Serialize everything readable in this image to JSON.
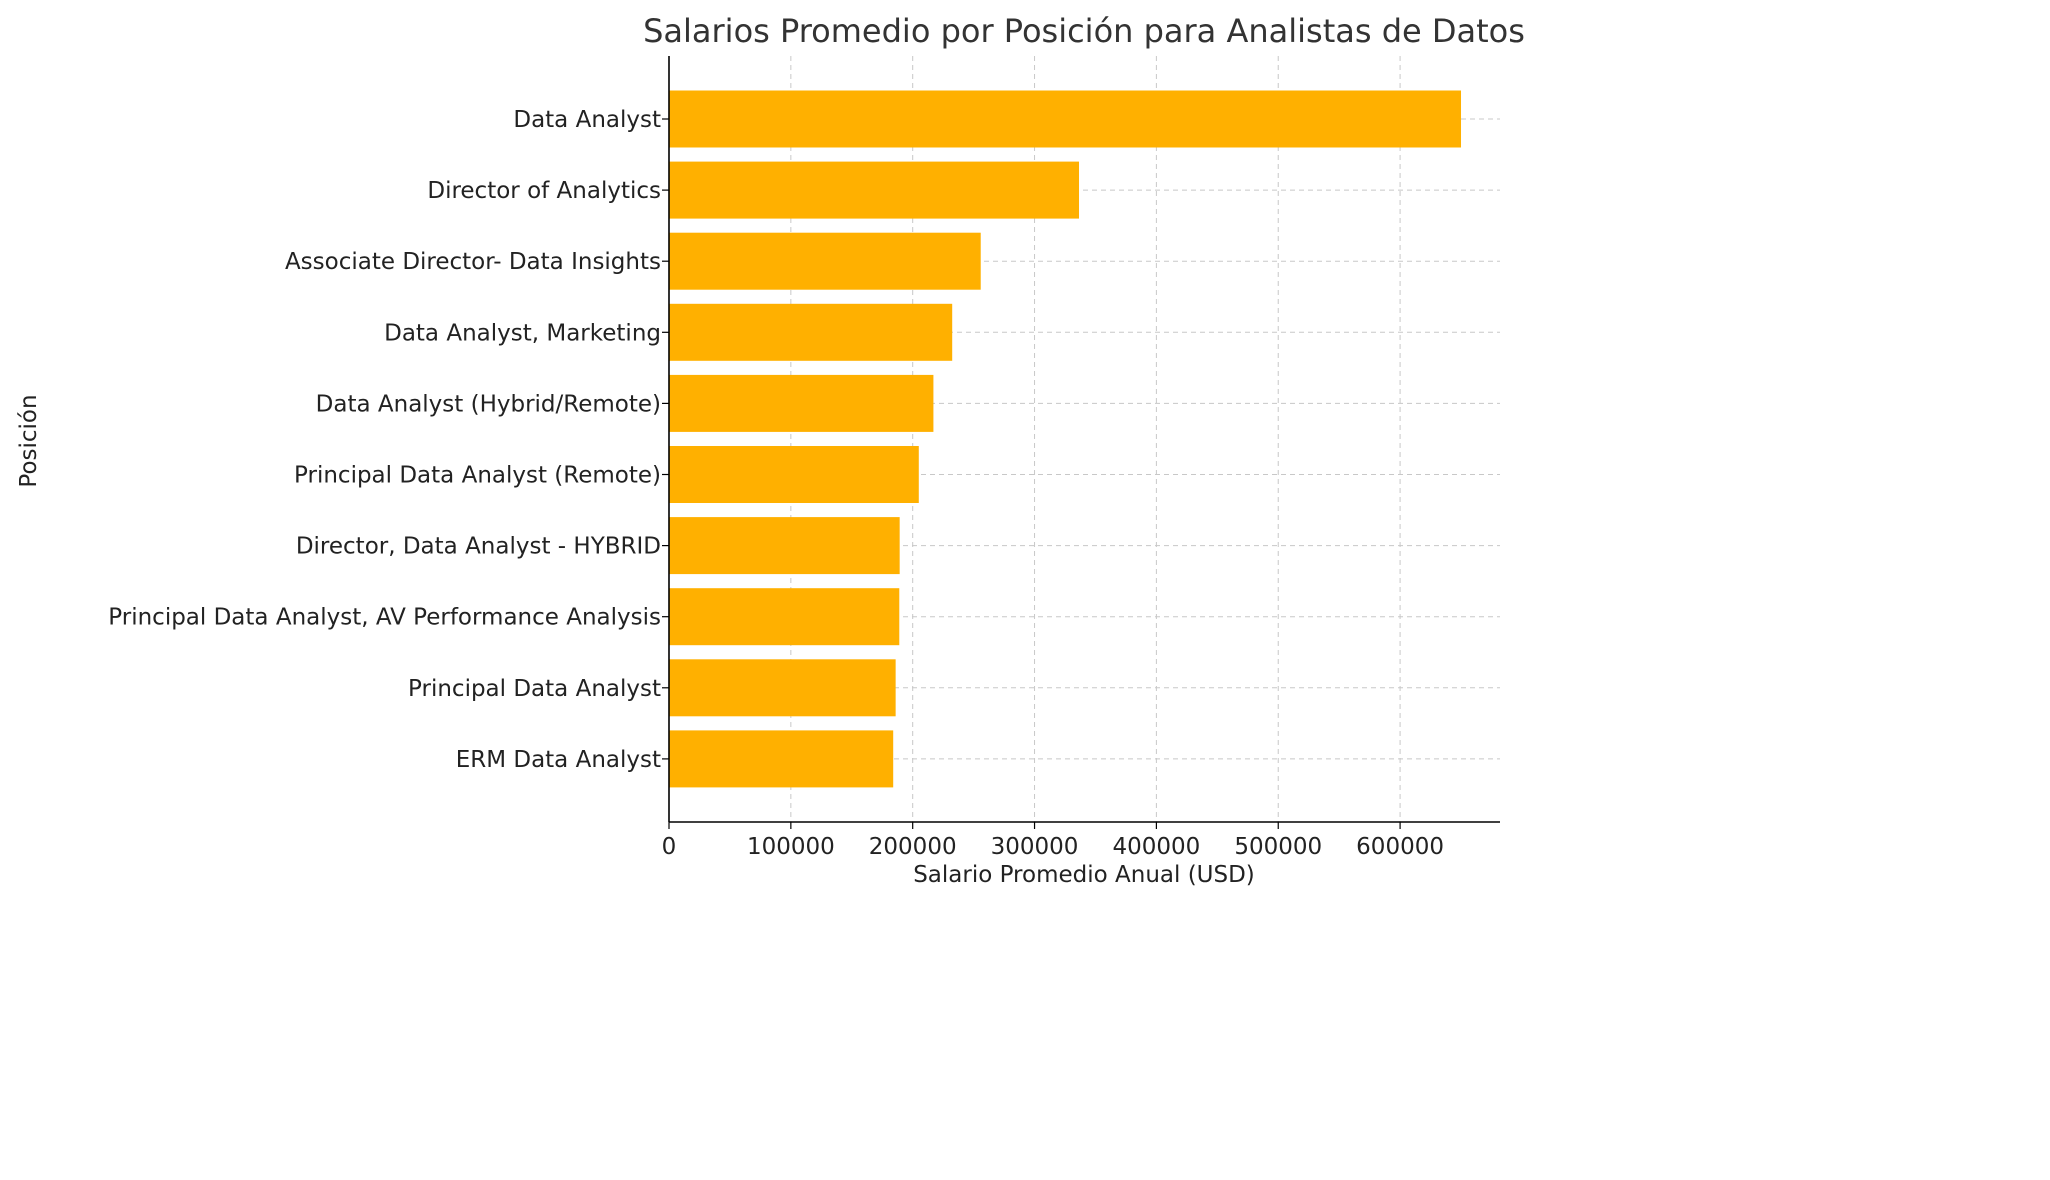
{
  "chart_data": {
    "type": "bar",
    "orientation": "horizontal",
    "title": "Salarios Promedio por Posición para Analistas de Datos",
    "xlabel": "Salario Promedio Anual (USD)",
    "ylabel": "Posición",
    "categories": [
      "Data Analyst",
      "Director of Analytics",
      "Associate Director- Data Insights",
      "Data Analyst, Marketing",
      "Data Analyst (Hybrid/Remote)",
      "Principal Data Analyst (Remote)",
      "Director, Data Analyst - HYBRID",
      "Principal Data Analyst, AV Performance Analysis",
      "Principal Data Analyst",
      "ERM Data Analyst"
    ],
    "values": [
      650000,
      336500,
      255830,
      232423,
      217000,
      205000,
      189309,
      189000,
      186000,
      184000
    ],
    "xlim": [
      0,
      682000
    ],
    "xticks": [
      0,
      100000,
      200000,
      300000,
      400000,
      500000,
      600000
    ],
    "grid": true,
    "bar_color": "#FFB000"
  }
}
